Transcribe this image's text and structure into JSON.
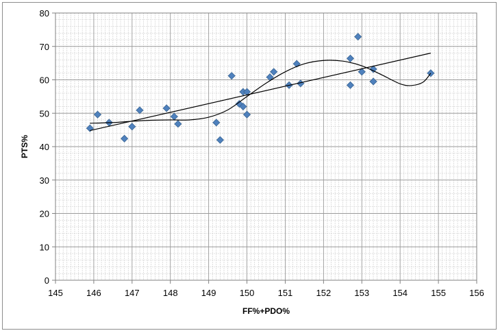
{
  "chart_data": {
    "type": "scatter",
    "title": "",
    "xlabel": "FF%+PDO%",
    "ylabel": "PTS%",
    "xlim": [
      145,
      156
    ],
    "ylim": [
      0,
      80
    ],
    "x_ticks": [
      145,
      146,
      147,
      148,
      149,
      150,
      151,
      152,
      153,
      154,
      155,
      156
    ],
    "y_ticks": [
      0,
      10,
      20,
      30,
      40,
      50,
      60,
      70,
      80
    ],
    "grid": true,
    "legend": "none",
    "colors": {
      "marker": "#4f81bd",
      "marker_edge": "#3a6593",
      "trend": "#000000",
      "grid": "#9a9a9a",
      "minor_grid": "#c8c8c8"
    },
    "points": [
      {
        "x": 145.9,
        "y": 45.5
      },
      {
        "x": 146.1,
        "y": 49.6
      },
      {
        "x": 146.4,
        "y": 47.2
      },
      {
        "x": 146.8,
        "y": 42.4
      },
      {
        "x": 147.0,
        "y": 46.0
      },
      {
        "x": 147.2,
        "y": 50.9
      },
      {
        "x": 147.9,
        "y": 51.5
      },
      {
        "x": 148.1,
        "y": 49.0
      },
      {
        "x": 148.2,
        "y": 46.8
      },
      {
        "x": 149.2,
        "y": 47.2
      },
      {
        "x": 149.3,
        "y": 42.0
      },
      {
        "x": 149.6,
        "y": 61.2
      },
      {
        "x": 149.8,
        "y": 52.8
      },
      {
        "x": 149.9,
        "y": 52.0
      },
      {
        "x": 149.9,
        "y": 56.4
      },
      {
        "x": 150.0,
        "y": 56.4
      },
      {
        "x": 150.0,
        "y": 49.6
      },
      {
        "x": 150.6,
        "y": 60.8
      },
      {
        "x": 150.7,
        "y": 62.4
      },
      {
        "x": 151.1,
        "y": 58.4
      },
      {
        "x": 151.3,
        "y": 64.8
      },
      {
        "x": 151.4,
        "y": 58.9
      },
      {
        "x": 152.7,
        "y": 66.4
      },
      {
        "x": 152.7,
        "y": 58.4
      },
      {
        "x": 152.9,
        "y": 72.9
      },
      {
        "x": 153.0,
        "y": 62.4
      },
      {
        "x": 153.3,
        "y": 63.2
      },
      {
        "x": 153.3,
        "y": 59.5
      },
      {
        "x": 154.8,
        "y": 62.0
      }
    ],
    "linear_trend": [
      {
        "x": 145.9,
        "y": 44.8
      },
      {
        "x": 154.8,
        "y": 68.0
      }
    ],
    "poly_trend": [
      {
        "x": 145.9,
        "y": 47.0
      },
      {
        "x": 146.5,
        "y": 47.2
      },
      {
        "x": 147.0,
        "y": 47.6
      },
      {
        "x": 147.5,
        "y": 47.9
      },
      {
        "x": 148.0,
        "y": 48.0
      },
      {
        "x": 148.5,
        "y": 48.0
      },
      {
        "x": 149.0,
        "y": 48.8
      },
      {
        "x": 149.5,
        "y": 51.0
      },
      {
        "x": 150.0,
        "y": 55.0
      },
      {
        "x": 150.5,
        "y": 59.0
      },
      {
        "x": 151.0,
        "y": 62.4
      },
      {
        "x": 151.5,
        "y": 64.8
      },
      {
        "x": 152.0,
        "y": 65.8
      },
      {
        "x": 152.5,
        "y": 65.6
      },
      {
        "x": 153.0,
        "y": 64.2
      },
      {
        "x": 153.5,
        "y": 61.6
      },
      {
        "x": 154.0,
        "y": 58.8
      },
      {
        "x": 154.3,
        "y": 58.3
      },
      {
        "x": 154.6,
        "y": 59.3
      },
      {
        "x": 154.8,
        "y": 62.0
      }
    ]
  }
}
